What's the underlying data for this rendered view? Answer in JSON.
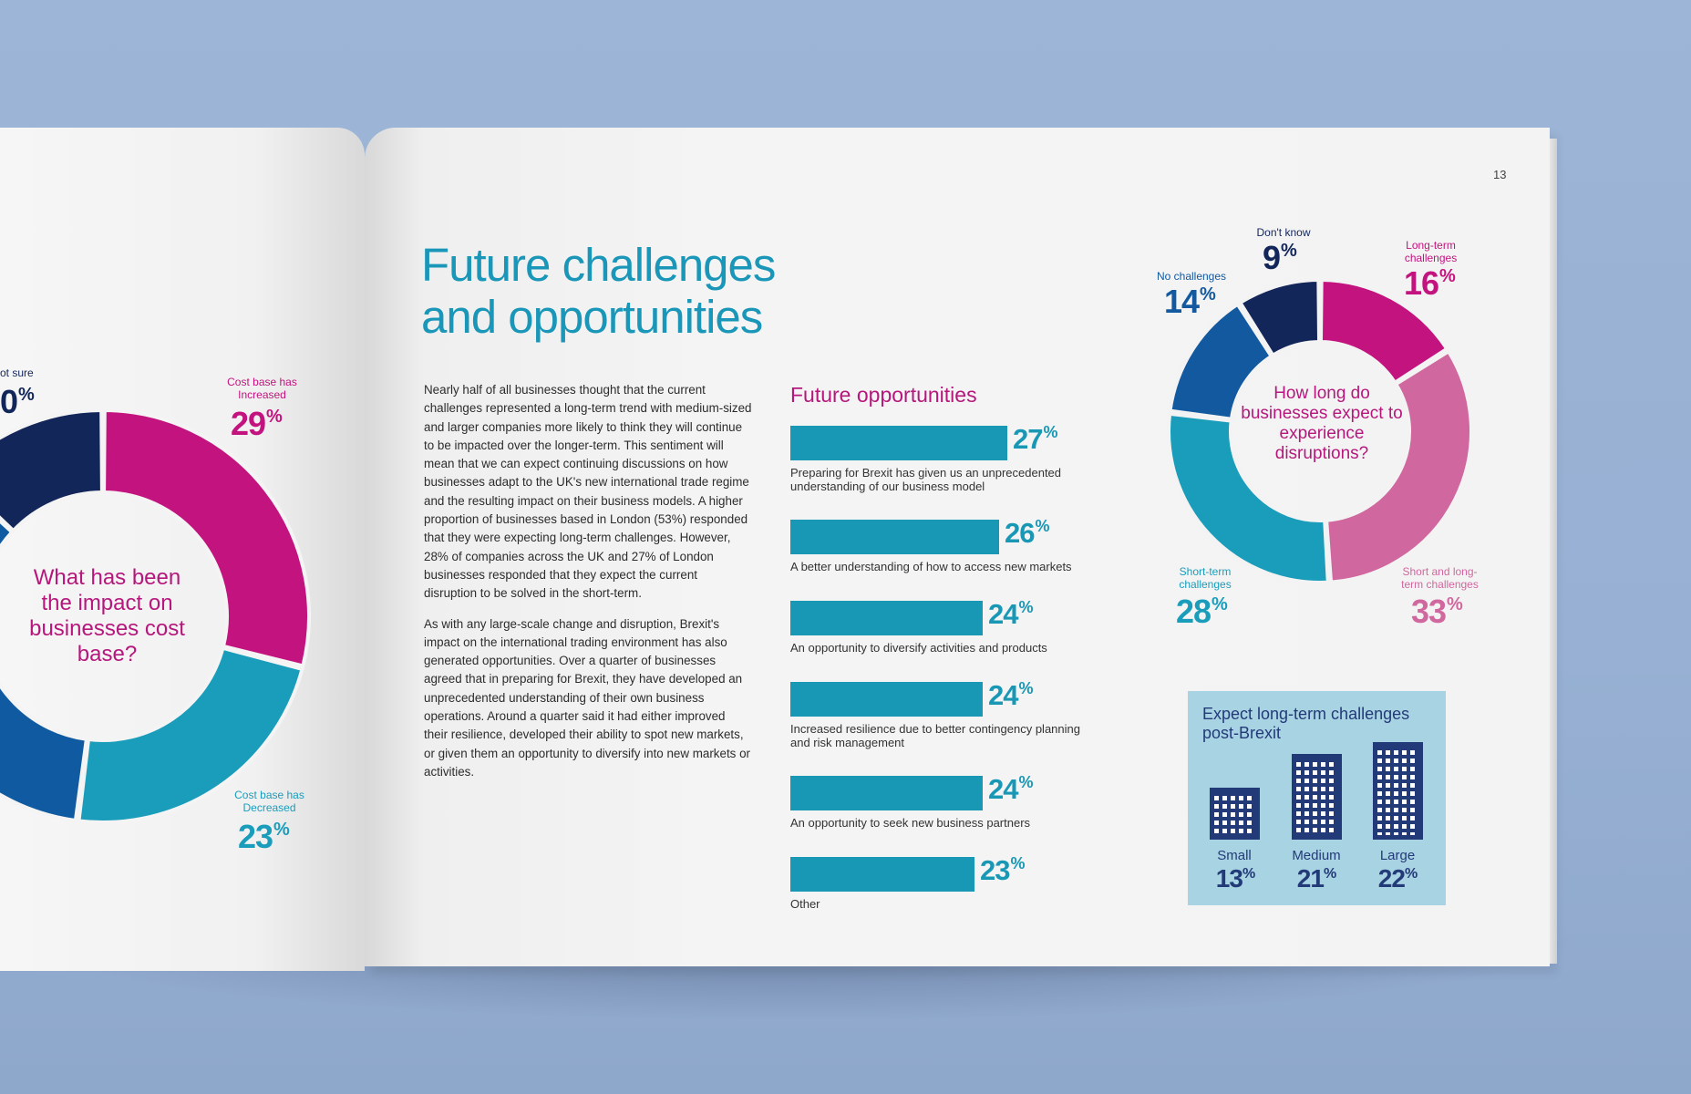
{
  "page_number": "13",
  "title_lines": [
    "Future challenges",
    "and opportunities"
  ],
  "body_paragraphs": [
    "Nearly half of all businesses thought that the current challenges represented a long-term trend with medium-sized and larger companies more likely to think they will continue to be impacted over the longer-term. This sentiment will mean that we can expect continuing discussions on how businesses adapt to the UK's new international trade regime and the resulting impact on their business models. A higher proportion of businesses based in London (53%) responded that they were expecting long-term challenges. However, 28% of companies across the UK and 27% of London businesses responded that they expect the current disruption to be solved in the short-term.",
    "As with any large-scale change and disruption, Brexit's impact on the international trading environment has also generated opportunities. Over a quarter of businesses agreed that in preparing for Brexit, they have developed an unprecedented understanding of their own business operations. Around a quarter said it had either improved their resilience, developed their ability to spot new markets, or given them an opportunity to diversify into new markets or activities."
  ],
  "percent_sign": "%",
  "left_donut": {
    "center_text": "What has been the impact on businesses cost base?",
    "label_not_sure": "ot sure",
    "pct_not_sure": "0",
    "label_increased": "Cost base has Increased",
    "pct_increased": "29",
    "label_decreased": "Cost base has Decreased",
    "pct_decreased": "23",
    "colors": {
      "increased": "#c3137e",
      "decreased": "#1a9dbb",
      "navy": "#13265a",
      "blue": "#0f5aa0"
    }
  },
  "opportunities": {
    "title": "Future opportunities",
    "items": [
      {
        "label": "Preparing for Brexit has given us an unprecedented understanding of our business model",
        "value": "27"
      },
      {
        "label": "A better understanding of how to access new markets",
        "value": "26"
      },
      {
        "label": "An opportunity to diversify activities and products",
        "value": "24"
      },
      {
        "label": "Increased resilience due to better contingency planning and risk management",
        "value": "24"
      },
      {
        "label": "An opportunity to seek new business partners",
        "value": "24"
      },
      {
        "label": "Other",
        "value": "23"
      }
    ]
  },
  "right_donut": {
    "center_text": "How long do businesses expect to experience disruptions?",
    "segments": [
      {
        "label": "Long-term challenges",
        "value": "16",
        "color": "#c3137e"
      },
      {
        "label": "Short and long-term challenges",
        "value": "33",
        "color": "#d0679e"
      },
      {
        "label": "Short-term challenges",
        "value": "28",
        "color": "#1a9dbb"
      },
      {
        "label": "No challenges",
        "value": "14",
        "color": "#1359a0"
      },
      {
        "label": "Don't know",
        "value": "9",
        "color": "#13265a"
      }
    ]
  },
  "size_box": {
    "title": "Expect long-term challenges post-Brexit",
    "items": [
      {
        "label": "Small",
        "value": "13"
      },
      {
        "label": "Medium",
        "value": "21"
      },
      {
        "label": "Large",
        "value": "22"
      }
    ]
  },
  "chart_data": [
    {
      "type": "bar",
      "title": "Future opportunities",
      "categories": [
        "Preparing for Brexit has given us an unprecedented understanding of our business model",
        "A better understanding of how to access new markets",
        "An opportunity to diversify activities and products",
        "Increased resilience due to better contingency planning and risk management",
        "An opportunity to seek new business partners",
        "Other"
      ],
      "values": [
        27,
        26,
        24,
        24,
        24,
        23
      ]
    },
    {
      "type": "pie",
      "title": "How long do businesses expect to experience disruptions?",
      "categories": [
        "Long-term challenges",
        "Short and long-term challenges",
        "Short-term challenges",
        "No challenges",
        "Don't know"
      ],
      "values": [
        16,
        33,
        28,
        14,
        9
      ]
    },
    {
      "type": "pie",
      "title": "What has been the impact on businesses cost base?",
      "categories": [
        "Cost base has Increased",
        "Cost base has Decreased"
      ],
      "values": [
        29,
        23
      ]
    },
    {
      "type": "bar",
      "title": "Expect long-term challenges post-Brexit",
      "categories": [
        "Small",
        "Medium",
        "Large"
      ],
      "values": [
        13,
        21,
        22
      ]
    }
  ]
}
